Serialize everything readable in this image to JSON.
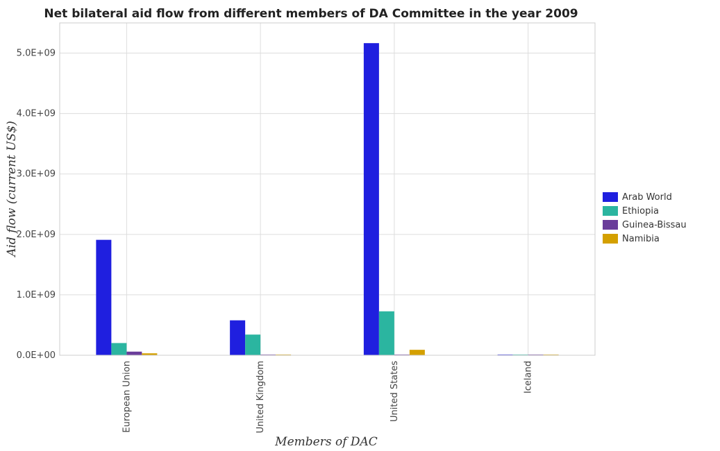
{
  "chart_data": {
    "type": "bar",
    "title": "Net bilateral aid flow from different members of DA Committee in the year 2009",
    "xlabel": "Members of DAC",
    "ylabel": "Aid flow (current US$)",
    "categories": [
      "European Union",
      "United Kingdom",
      "United States",
      "Iceland"
    ],
    "ylim": [
      0,
      5500000000
    ],
    "yticks": [
      0,
      1000000000,
      2000000000,
      3000000000,
      4000000000,
      5000000000
    ],
    "ytick_labels": [
      "0.0E+00",
      "1.0E+09",
      "2.0E+09",
      "3.0E+09",
      "4.0E+09",
      "5.0E+09"
    ],
    "grid": true,
    "legend_position": "right",
    "series": [
      {
        "name": "Arab World",
        "color": "#1f1fdf",
        "values": [
          1910000000,
          578000000,
          5165000000,
          1500000
        ]
      },
      {
        "name": "Ethiopia",
        "color": "#2bb5a0",
        "values": [
          202000000,
          342000000,
          727000000,
          600000
        ]
      },
      {
        "name": "Guinea-Bissau",
        "color": "#6a3d9a",
        "values": [
          60000000,
          1000000,
          2000000,
          300000
        ]
      },
      {
        "name": "Namibia",
        "color": "#d4a000",
        "values": [
          32000000,
          1500000,
          90000000,
          2500000
        ]
      }
    ]
  }
}
